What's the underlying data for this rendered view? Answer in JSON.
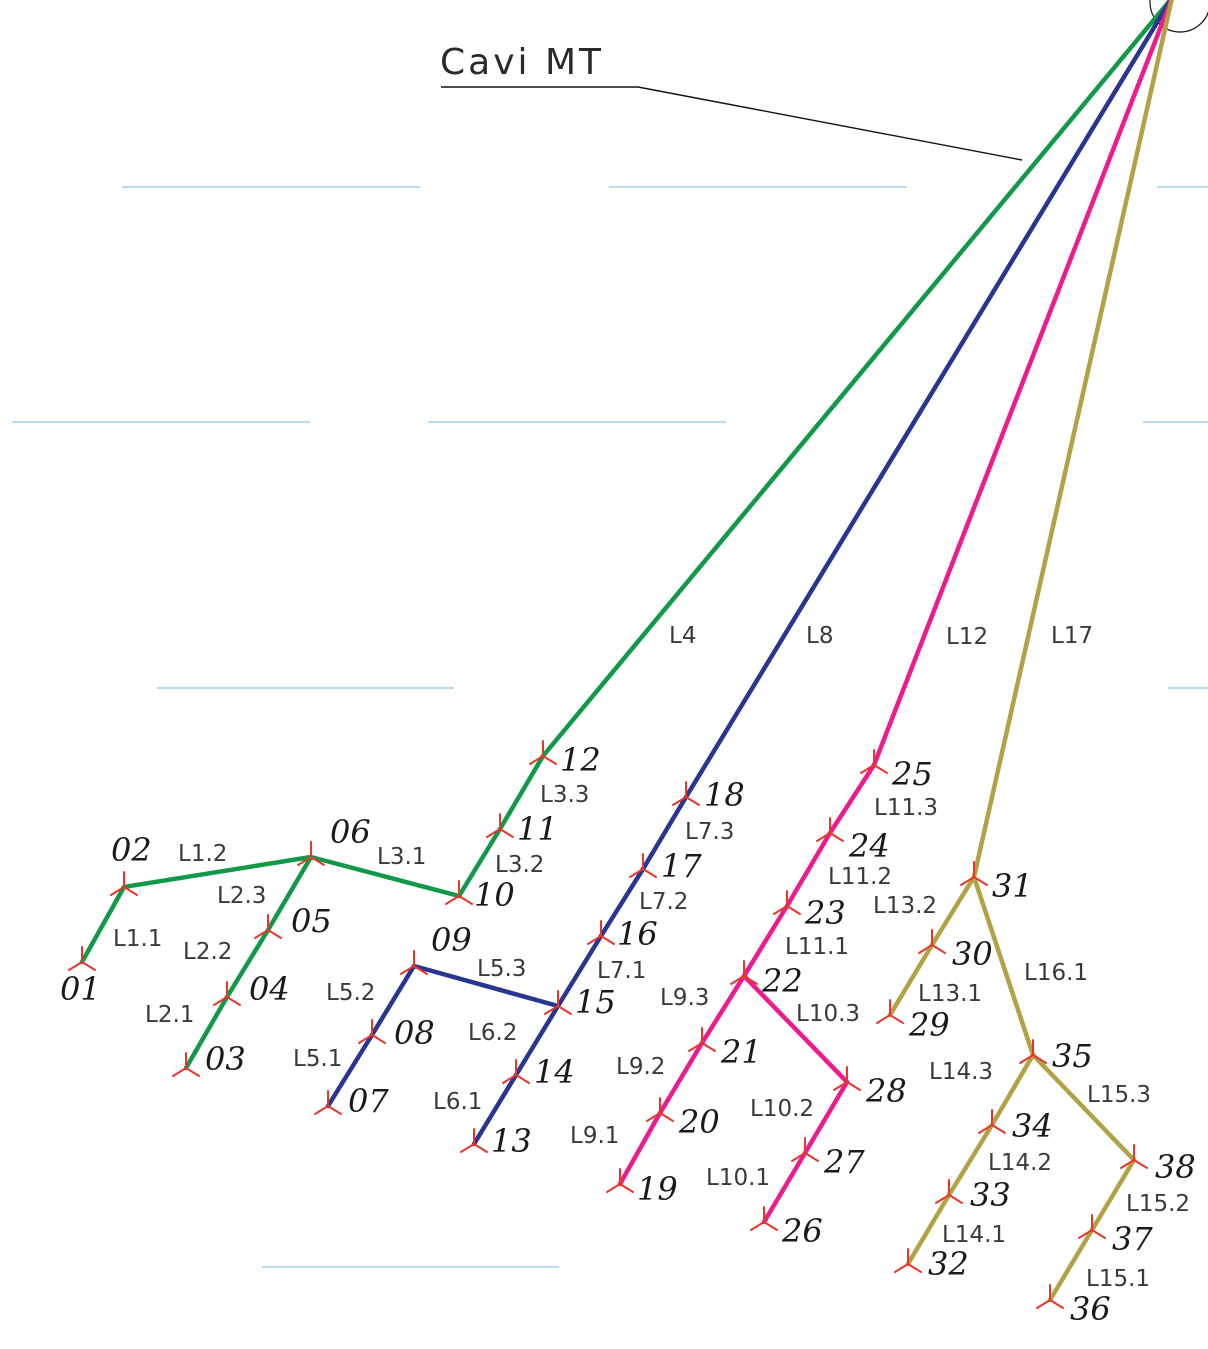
{
  "title": "Cavi MT",
  "colors": {
    "green": "#119949",
    "blue": "#2a3592",
    "magenta": "#ee1a8e",
    "olive": "#b1a244",
    "node": "#e8362b",
    "guide": "#9fd2ea",
    "leader": "#111111",
    "text": "#3a3a3a"
  },
  "nodes": [
    "01",
    "02",
    "03",
    "04",
    "05",
    "06",
    "07",
    "08",
    "09",
    "10",
    "11",
    "12",
    "13",
    "14",
    "15",
    "16",
    "17",
    "18",
    "19",
    "20",
    "21",
    "22",
    "23",
    "24",
    "25",
    "26",
    "27",
    "28",
    "29",
    "30",
    "31",
    "32",
    "33",
    "34",
    "35",
    "36",
    "37",
    "38"
  ],
  "edge_labels": [
    "L1.1",
    "L1.2",
    "L2.1",
    "L2.2",
    "L2.3",
    "L3.1",
    "L3.2",
    "L3.3",
    "L4",
    "L5.1",
    "L5.2",
    "L5.3",
    "L6.1",
    "L6.2",
    "L7.1",
    "L7.2",
    "L7.3",
    "L8",
    "L9.1",
    "L9.2",
    "L9.3",
    "L10.1",
    "L10.2",
    "L10.3",
    "L11.1",
    "L11.2",
    "L11.3",
    "L12",
    "L13.1",
    "L13.2",
    "L14.1",
    "L14.2",
    "L14.3",
    "L15.1",
    "L15.2",
    "L15.3",
    "L16.1",
    "L17"
  ]
}
